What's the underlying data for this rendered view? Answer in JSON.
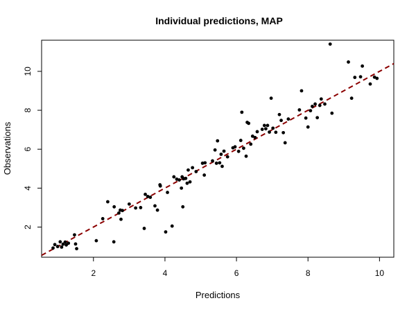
{
  "chart_data": {
    "type": "scatter",
    "title": "Individual predictions, MAP",
    "xlabel": "Predictions",
    "ylabel": "Observations",
    "xlim": [
      0.55,
      10.4
    ],
    "ylim": [
      0.45,
      11.6
    ],
    "xticks": [
      2,
      4,
      6,
      8,
      10
    ],
    "yticks": [
      2,
      4,
      6,
      8,
      10
    ],
    "xtick_labels": [
      "2",
      "4",
      "6",
      "8",
      "10"
    ],
    "ytick_labels": [
      "2",
      "4",
      "6",
      "8",
      "10"
    ],
    "grid": false,
    "legend": "none",
    "point_color": "#000000",
    "reference_line": {
      "style": "dashed",
      "color": "#8b0000",
      "from": [
        0.55,
        0.55
      ],
      "to": [
        10.4,
        10.4
      ]
    },
    "points": [
      [
        0.87,
        0.92
      ],
      [
        0.92,
        1.1
      ],
      [
        1.0,
        1.0
      ],
      [
        1.07,
        1.24
      ],
      [
        1.11,
        0.97
      ],
      [
        1.15,
        1.12
      ],
      [
        1.21,
        1.23
      ],
      [
        1.24,
        1.08
      ],
      [
        1.3,
        1.17
      ],
      [
        1.47,
        1.6
      ],
      [
        1.5,
        1.13
      ],
      [
        1.53,
        0.89
      ],
      [
        2.08,
        1.3
      ],
      [
        2.26,
        2.43
      ],
      [
        2.4,
        3.3
      ],
      [
        2.57,
        1.24
      ],
      [
        2.58,
        3.04
      ],
      [
        2.71,
        2.72
      ],
      [
        2.75,
        2.87
      ],
      [
        2.77,
        2.4
      ],
      [
        2.81,
        2.85
      ],
      [
        3.0,
        3.18
      ],
      [
        3.18,
        2.98
      ],
      [
        3.32,
        3.0
      ],
      [
        3.42,
        1.93
      ],
      [
        3.45,
        3.68
      ],
      [
        3.52,
        3.57
      ],
      [
        3.59,
        3.53
      ],
      [
        3.72,
        3.09
      ],
      [
        3.79,
        2.87
      ],
      [
        3.86,
        4.17
      ],
      [
        3.87,
        4.11
      ],
      [
        4.02,
        1.75
      ],
      [
        4.07,
        3.78
      ],
      [
        4.2,
        2.05
      ],
      [
        4.25,
        4.58
      ],
      [
        4.33,
        4.46
      ],
      [
        4.4,
        4.42
      ],
      [
        4.46,
        4.0
      ],
      [
        4.48,
        4.58
      ],
      [
        4.5,
        3.04
      ],
      [
        4.52,
        4.48
      ],
      [
        4.58,
        4.5
      ],
      [
        4.62,
        4.25
      ],
      [
        4.65,
        4.93
      ],
      [
        4.7,
        4.32
      ],
      [
        4.77,
        5.05
      ],
      [
        4.87,
        4.85
      ],
      [
        5.05,
        5.28
      ],
      [
        5.1,
        4.67
      ],
      [
        5.12,
        5.3
      ],
      [
        5.33,
        5.4
      ],
      [
        5.4,
        5.96
      ],
      [
        5.44,
        5.28
      ],
      [
        5.47,
        6.43
      ],
      [
        5.53,
        5.3
      ],
      [
        5.57,
        5.74
      ],
      [
        5.6,
        5.12
      ],
      [
        5.65,
        5.9
      ],
      [
        5.75,
        5.61
      ],
      [
        5.9,
        6.07
      ],
      [
        5.96,
        6.12
      ],
      [
        6.06,
        5.89
      ],
      [
        6.12,
        6.45
      ],
      [
        6.15,
        7.9
      ],
      [
        6.2,
        6.05
      ],
      [
        6.27,
        5.64
      ],
      [
        6.3,
        7.38
      ],
      [
        6.34,
        7.33
      ],
      [
        6.4,
        6.26
      ],
      [
        6.45,
        6.67
      ],
      [
        6.52,
        6.6
      ],
      [
        6.58,
        6.9
      ],
      [
        6.72,
        7.02
      ],
      [
        6.78,
        7.22
      ],
      [
        6.82,
        7.05
      ],
      [
        6.87,
        7.22
      ],
      [
        6.92,
        6.88
      ],
      [
        6.97,
        8.62
      ],
      [
        7.02,
        7.08
      ],
      [
        7.1,
        6.87
      ],
      [
        7.2,
        7.78
      ],
      [
        7.25,
        7.48
      ],
      [
        7.31,
        6.85
      ],
      [
        7.36,
        6.33
      ],
      [
        7.45,
        7.55
      ],
      [
        7.76,
        8.02
      ],
      [
        7.82,
        9.0
      ],
      [
        7.94,
        7.6
      ],
      [
        8.0,
        7.14
      ],
      [
        8.07,
        7.98
      ],
      [
        8.12,
        8.2
      ],
      [
        8.2,
        8.32
      ],
      [
        8.26,
        7.62
      ],
      [
        8.33,
        8.25
      ],
      [
        8.37,
        8.58
      ],
      [
        8.47,
        8.32
      ],
      [
        8.62,
        11.4
      ],
      [
        8.67,
        7.85
      ],
      [
        9.13,
        10.48
      ],
      [
        9.22,
        8.62
      ],
      [
        9.31,
        9.69
      ],
      [
        9.47,
        9.72
      ],
      [
        9.52,
        10.27
      ],
      [
        9.74,
        9.35
      ],
      [
        9.86,
        9.7
      ],
      [
        9.93,
        9.64
      ]
    ]
  }
}
